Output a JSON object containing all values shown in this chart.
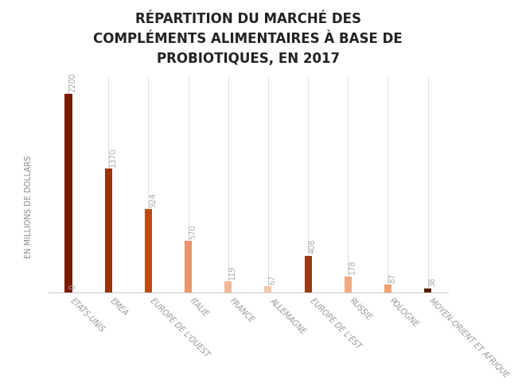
{
  "title": "RÉPARTITION DU MARCHÉ DES\nCOMPLÉMENTS ALIMENTAIRES À BASE DE\nPROBIOTIQUES, EN 2017",
  "ylabel": "EN MILLIONS DE DOLLARS",
  "categories": [
    "ETATS-UNIS",
    "EMEA",
    "EUROPE DE L'OUEST",
    "ITALIE",
    "FRANCE",
    "ALLEMAGNE",
    "EUROPE DE L'EST",
    "RUSSIE",
    "POLOGNE",
    "MOYEN-ORIENT ET AFRIQUE"
  ],
  "values": [
    2200,
    1370,
    924,
    570,
    119,
    67,
    408,
    178,
    87,
    38
  ],
  "bar_colors": [
    "#7B1A00",
    "#9B3205",
    "#C04A10",
    "#E8956A",
    "#F2B896",
    "#F5C8A8",
    "#9B3A10",
    "#F0AA80",
    "#EEA070",
    "#5A1A00"
  ],
  "value_labels": [
    "2200",
    "1370",
    "924",
    "570",
    "119",
    "67",
    "408",
    "178",
    "87",
    "38"
  ],
  "zero_label_bar_index": 0,
  "ylim": [
    0,
    2400
  ],
  "bar_width": 0.18,
  "title_fontsize": 12,
  "label_fontsize": 7,
  "ylabel_fontsize": 7,
  "tick_fontsize": 7,
  "background_color": "#ffffff",
  "grid_color": "#e0e0e0",
  "text_color": "#aaaaaa",
  "label_color": "#aaaaaa"
}
